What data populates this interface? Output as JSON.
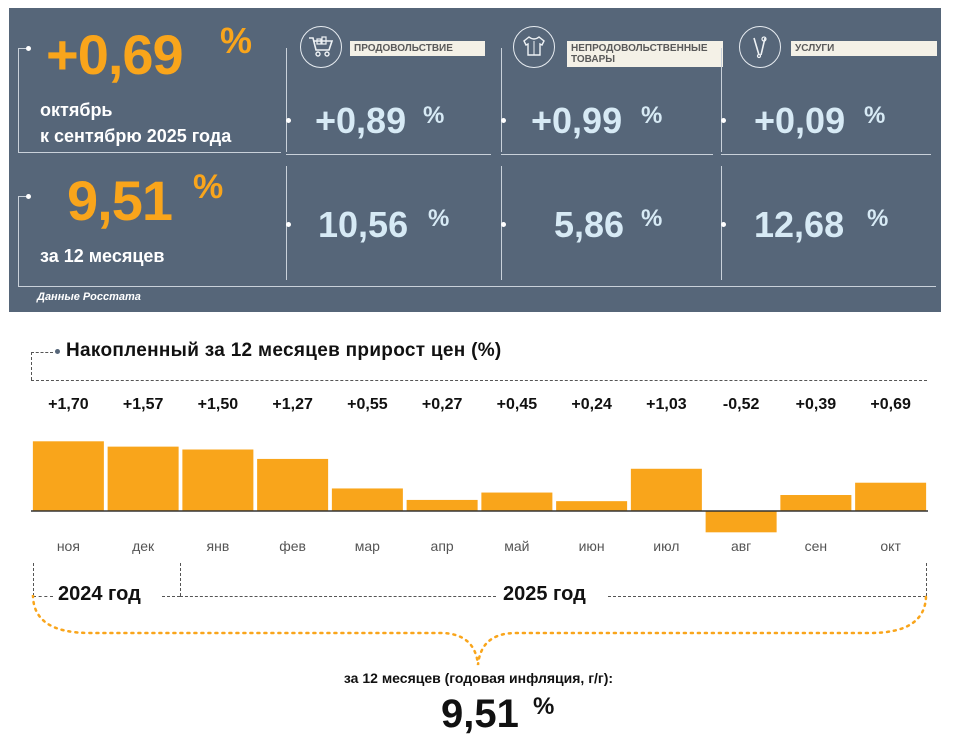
{
  "summary": {
    "monthly": {
      "value": "+0,69",
      "unit": "%",
      "caption_line1": "октябрь",
      "caption_line2": "к сентябрю 2025 года"
    },
    "annual": {
      "value": "9,51",
      "unit": "%",
      "caption": "за 12 месяцев"
    },
    "source": "Данные Росстата",
    "categories": [
      {
        "label": "ПРОДОВОЛЬСТВИЕ",
        "icon": "shopping-cart-icon",
        "monthly": "+0,89",
        "annual": "10,56",
        "unit": "%"
      },
      {
        "label_line1": "НЕПРОДОВОЛЬСТВЕННЫЕ",
        "label_line2": "ТОВАРЫ",
        "icon": "clothing-icon",
        "monthly": "+0,99",
        "annual": "5,86",
        "unit": "%"
      },
      {
        "label": "УСЛУГИ",
        "icon": "tools-icon",
        "monthly": "+0,09",
        "annual": "12,68",
        "unit": "%"
      }
    ]
  },
  "chart_section": {
    "heading": "Накопленный за 12 месяцев прирост цен (%)",
    "year_2024": "2024 год",
    "year_2025": "2025 год",
    "footer_caption": "за 12 месяцев (годовая инфляция, г/г):",
    "footer_value": "9,51",
    "footer_unit": "%"
  },
  "chart_data": {
    "type": "bar",
    "title": "Накопленный за 12 месяцев прирост цен (%)",
    "categories": [
      "ноя",
      "дек",
      "янв",
      "фев",
      "мар",
      "апр",
      "май",
      "июн",
      "июл",
      "авг",
      "сен",
      "окт"
    ],
    "values": [
      1.7,
      1.57,
      1.5,
      1.27,
      0.55,
      0.27,
      0.45,
      0.24,
      1.03,
      -0.52,
      0.39,
      0.69
    ],
    "value_labels": [
      "+1,70",
      "+1,57",
      "+1,50",
      "+1,27",
      "+0,55",
      "+0,27",
      "+0,45",
      "+0,24",
      "+1,03",
      "-0,52",
      "+0,39",
      "+0,69"
    ],
    "xlabel": "",
    "ylabel": "",
    "bar_color": "#f9a51b"
  }
}
